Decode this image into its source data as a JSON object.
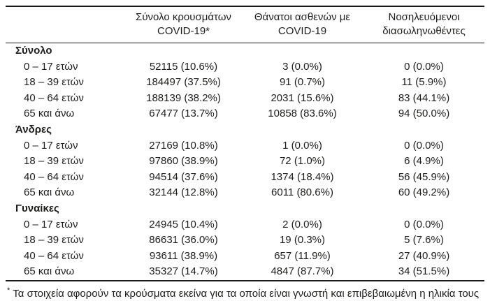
{
  "table": {
    "header": {
      "col_cases": {
        "line1": "Σύνολο κρουσμάτων",
        "line2": "COVID-19*"
      },
      "col_deaths": {
        "line1": "Θάνατοι ασθενών με",
        "line2": "COVID-19"
      },
      "col_intubated": {
        "line1": "Νοσηλευόμενοι",
        "line2": "διασωληνωθέντες"
      }
    },
    "sections": [
      {
        "title": "Σύνολο",
        "rows": [
          {
            "label": "0 – 17 ετών",
            "cases": "52115 (10.6%)",
            "deaths": "3 (0.0%)",
            "intubated": "0 (0.0%)"
          },
          {
            "label": "18 – 39 ετών",
            "cases": "184497 (37.5%)",
            "deaths": "91 (0.7%)",
            "intubated": "11 (5.9%)"
          },
          {
            "label": "40 – 64 ετών",
            "cases": "188139 (38.2%)",
            "deaths": "2031 (15.6%)",
            "intubated": "83 (44.1%)"
          },
          {
            "label": "65 και άνω",
            "cases": "67477 (13.7%)",
            "deaths": "10858 (83.6%)",
            "intubated": "94 (50.0%)"
          }
        ]
      },
      {
        "title": "Άνδρες",
        "rows": [
          {
            "label": "0 – 17 ετών",
            "cases": "27169 (10.8%)",
            "deaths": "1 (0.0%)",
            "intubated": "0 (0.0%)"
          },
          {
            "label": "18 – 39 ετών",
            "cases": "97860 (38.9%)",
            "deaths": "72 (1.0%)",
            "intubated": "6 (4.9%)"
          },
          {
            "label": "40 – 64 ετών",
            "cases": "94514 (37.6%)",
            "deaths": "1374 (18.4%)",
            "intubated": "56 (45.9%)"
          },
          {
            "label": "65 και άνω",
            "cases": "32144 (12.8%)",
            "deaths": "6011 (80.6%)",
            "intubated": "60 (49.2%)"
          }
        ]
      },
      {
        "title": "Γυναίκες",
        "rows": [
          {
            "label": "0 – 17 ετών",
            "cases": "24945 (10.4%)",
            "deaths": "2 (0.0%)",
            "intubated": "0 (0.0%)"
          },
          {
            "label": "18 – 39 ετών",
            "cases": "86631 (36.0%)",
            "deaths": "19 (0.3%)",
            "intubated": "5 (7.6%)"
          },
          {
            "label": "40 – 64 ετών",
            "cases": "93611 (38.9%)",
            "deaths": "657 (11.9%)",
            "intubated": "27 (40.9%)"
          },
          {
            "label": "65 και άνω",
            "cases": "35327 (14.7%)",
            "deaths": "4847 (87.7%)",
            "intubated": "34 (51.5%)"
          }
        ]
      }
    ],
    "footnote": {
      "marker": "*",
      "text": "Τα στοιχεία αφορούν τα κρούσματα εκείνα για τα οποία είναι γνωστή και επιβεβαιωμένη η ηλικία τους"
    }
  },
  "colors": {
    "text": "#1d1d1b",
    "rule": "#1a1a1a",
    "background": "#ffffff"
  }
}
